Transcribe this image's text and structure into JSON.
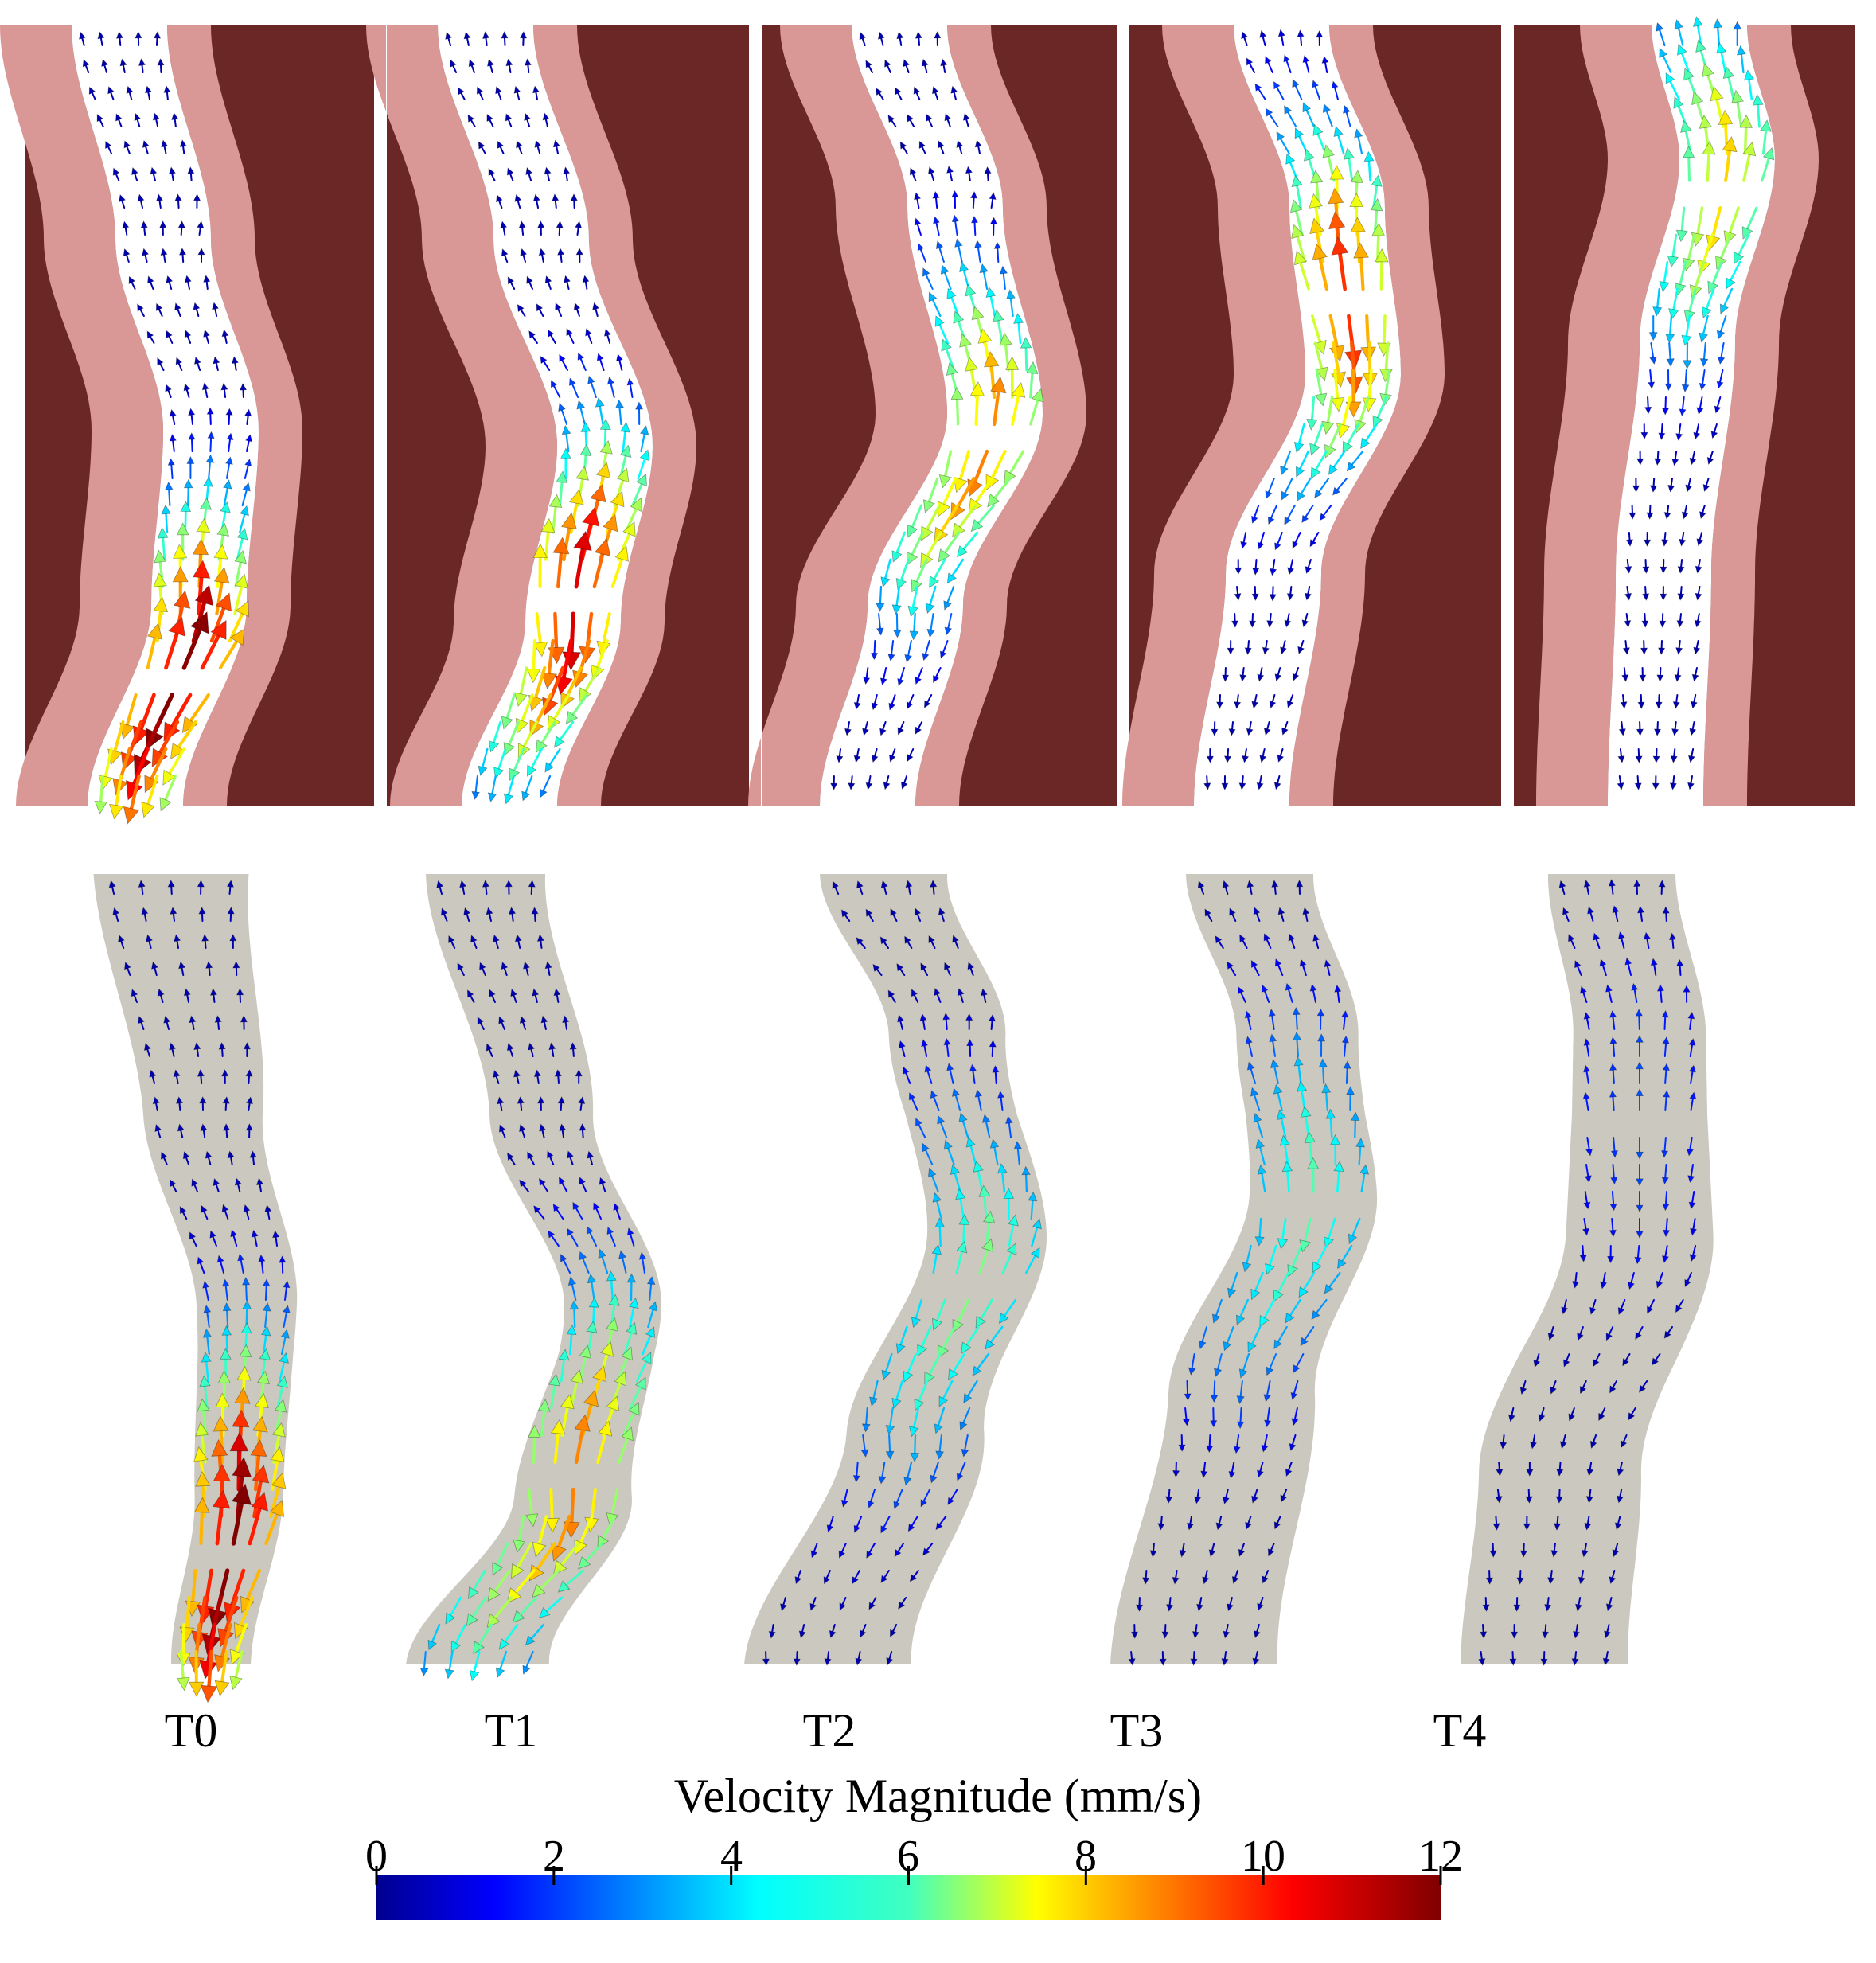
{
  "time_labels": [
    "T0",
    "T1",
    "T2",
    "T3",
    "T4"
  ],
  "colorbar": {
    "title": "Velocity Magnitude (mm/s)",
    "ticks": [
      "0",
      "2",
      "4",
      "6",
      "8",
      "10",
      "12"
    ],
    "min": 0,
    "max": 12,
    "colormap": "jet"
  },
  "colors": {
    "tissue_dark": "#6b2626",
    "tissue_light": "#d99796",
    "channel": "#ffffff",
    "simulation_domain": "#cbc8c0"
  },
  "panels": [
    {
      "label": "T0",
      "peak_speed_experiment": 12,
      "peak_speed_simulation": 12
    },
    {
      "label": "T1",
      "peak_speed_experiment": 11,
      "peak_speed_simulation": 9
    },
    {
      "label": "T2",
      "peak_speed_experiment": 9,
      "peak_speed_simulation": 6
    },
    {
      "label": "T3",
      "peak_speed_experiment": 10,
      "peak_speed_simulation": 5.5
    },
    {
      "label": "T4",
      "peak_speed_experiment": 8,
      "peak_speed_simulation": 2.5
    }
  ]
}
